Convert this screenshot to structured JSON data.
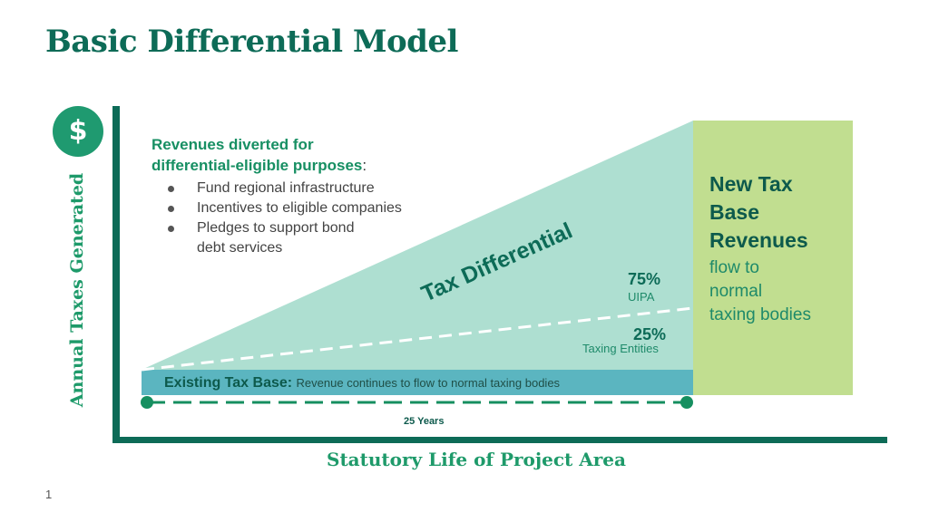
{
  "title": "Basic Differential Model",
  "icons": {
    "dollar": "dollar-sign-icon"
  },
  "dollar_symbol": "$",
  "y_axis_label": "Annual Taxes Generated",
  "x_axis_label": "Statutory Life of Project Area",
  "revenues": {
    "heading_line1": "Revenues diverted for",
    "heading_line2": "differential-eligible purposes",
    "heading_colon": ":",
    "bullets": [
      "Fund regional infrastructure",
      "Incentives to eligible companies",
      "Pledges to support bond",
      "debt services"
    ]
  },
  "tax_differential": "Tax Differential",
  "uipa_share": {
    "percent": "75%",
    "label": "UIPA"
  },
  "taxing_entities_share": {
    "percent": "25%",
    "label": "Taxing Entities"
  },
  "existing_tax_base": {
    "label": "Existing Tax Base:",
    "description": "Revenue continues to flow to normal taxing bodies"
  },
  "duration": "25 Years",
  "new_tax_base": {
    "line1": "New Tax",
    "line2": "Base",
    "line3": "Revenues",
    "flow1": "flow to",
    "flow2": "normal",
    "flow3": "taxing bodies"
  },
  "page_number": "1",
  "colors": {
    "dark_green": "#0d6b57",
    "bright_green": "#1e9a6a",
    "mint": "#aedfd1",
    "teal_band": "#5bb5c0",
    "lime": "#c1de90"
  }
}
